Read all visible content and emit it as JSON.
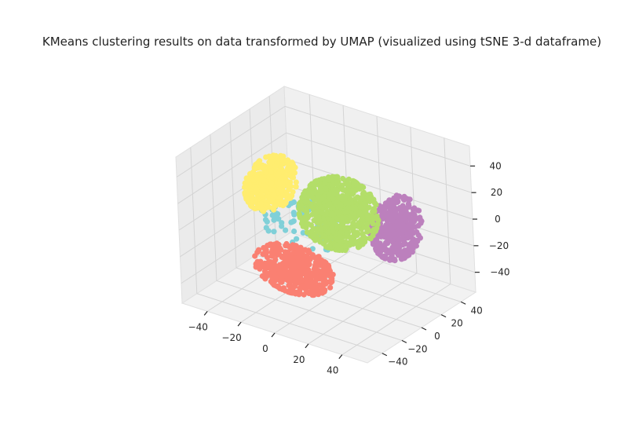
{
  "chart_data": {
    "type": "scatter",
    "projection": "3d",
    "title": "KMeans clustering results on data transformed by UMAP (visualized using tSNE 3-d dataframe)",
    "xlabel": "",
    "ylabel": "",
    "zlabel": "",
    "xlim": [
      -55,
      55
    ],
    "ylim": [
      -55,
      55
    ],
    "zlim": [
      -55,
      55
    ],
    "x_ticks": [
      "−40",
      "−20",
      "0",
      "20",
      "40"
    ],
    "y_ticks": [
      "−40",
      "−20",
      "0",
      "20",
      "40"
    ],
    "z_ticks": [
      "−40",
      "−20",
      "0",
      "20",
      "40"
    ],
    "grid": true,
    "legend": "none",
    "series": [
      {
        "color": "#80d0d8",
        "center": [
          -10,
          -8,
          2
        ],
        "spread": [
          22,
          14,
          20
        ],
        "n": 60
      },
      {
        "color": "#fa8072",
        "center": [
          -2,
          -30,
          -20
        ],
        "spread": [
          22,
          12,
          16
        ],
        "n": 420
      },
      {
        "color": "#bc80bd",
        "center": [
          30,
          20,
          0
        ],
        "spread": [
          11,
          18,
          22
        ],
        "n": 380
      },
      {
        "color": "#ffed6f",
        "center": [
          -32,
          0,
          18
        ],
        "spread": [
          10,
          20,
          18
        ],
        "n": 380
      },
      {
        "color": "#b3de69",
        "center": [
          5,
          5,
          8
        ],
        "spread": [
          20,
          20,
          24
        ],
        "n": 700
      }
    ]
  }
}
